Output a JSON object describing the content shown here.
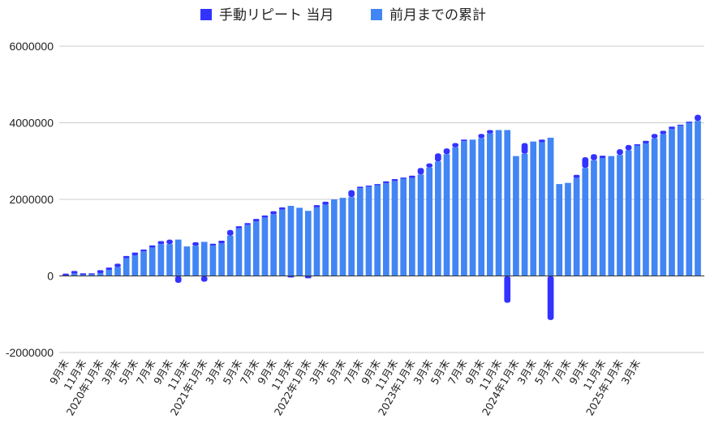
{
  "chart_data": {
    "type": "bar",
    "stacked": true,
    "legend_position": "top",
    "grid": true,
    "ylim": [
      -2000000,
      6000000
    ],
    "yticks": [
      -2000000,
      0,
      2000000,
      4000000,
      6000000
    ],
    "ytick_labels": [
      "-2000000",
      "0",
      "2000000",
      "4000000",
      "6000000"
    ],
    "series": [
      {
        "name": "手動リピート 当月",
        "color": "#3333ff",
        "values": [
          60000,
          70000,
          40000,
          30000,
          80000,
          60000,
          90000,
          60000,
          70000,
          50000,
          60000,
          80000,
          120000,
          -180000,
          0,
          90000,
          -150000,
          50000,
          70000,
          150000,
          60000,
          50000,
          70000,
          60000,
          80000,
          60000,
          -40000,
          0,
          -60000,
          60000,
          80000,
          0,
          0,
          180000,
          40000,
          30000,
          30000,
          50000,
          50000,
          30000,
          60000,
          170000,
          110000,
          210000,
          150000,
          110000,
          40000,
          0,
          110000,
          90000,
          0,
          -700000,
          0,
          280000,
          0,
          70000,
          -1150000,
          0,
          0,
          80000,
          280000,
          160000,
          60000,
          0,
          150000,
          140000,
          40000,
          70000,
          120000,
          90000,
          60000,
          30000,
          30000,
          160000
        ]
      },
      {
        "name": "前月までの累計",
        "color": "#4285f4",
        "values": [
          0,
          60000,
          30000,
          40000,
          70000,
          160000,
          230000,
          460000,
          540000,
          640000,
          740000,
          830000,
          830000,
          950000,
          770000,
          790000,
          890000,
          790000,
          850000,
          1050000,
          1240000,
          1330000,
          1420000,
          1520000,
          1610000,
          1730000,
          1830000,
          1780000,
          1700000,
          1790000,
          1860000,
          2000000,
          2040000,
          2060000,
          2290000,
          2330000,
          2370000,
          2420000,
          2480000,
          2540000,
          2560000,
          2650000,
          2830000,
          2990000,
          3180000,
          3360000,
          3520000,
          3560000,
          3600000,
          3720000,
          3810000,
          3810000,
          3130000,
          3190000,
          3510000,
          3490000,
          3610000,
          2400000,
          2430000,
          2560000,
          2820000,
          3020000,
          3080000,
          3130000,
          3160000,
          3280000,
          3400000,
          3460000,
          3590000,
          3700000,
          3840000,
          3920000,
          4000000,
          4050000
        ]
      }
    ],
    "x_tick_labels": [
      {
        "index": 0,
        "label": "9月末"
      },
      {
        "index": 2,
        "label": "11月末"
      },
      {
        "index": 4,
        "label": "2020年1月末"
      },
      {
        "index": 6,
        "label": "3月末"
      },
      {
        "index": 8,
        "label": "5月末"
      },
      {
        "index": 10,
        "label": "7月末"
      },
      {
        "index": 12,
        "label": "9月末"
      },
      {
        "index": 14,
        "label": "11月末"
      },
      {
        "index": 16,
        "label": "2021年1月末"
      },
      {
        "index": 18,
        "label": "3月末"
      },
      {
        "index": 20,
        "label": "5月末"
      },
      {
        "index": 22,
        "label": "7月末"
      },
      {
        "index": 24,
        "label": "9月末"
      },
      {
        "index": 26,
        "label": "11月末"
      },
      {
        "index": 28,
        "label": "2022年1月末"
      },
      {
        "index": 30,
        "label": "3月末"
      },
      {
        "index": 32,
        "label": "5月末"
      },
      {
        "index": 34,
        "label": "7月末"
      },
      {
        "index": 36,
        "label": "9月末"
      },
      {
        "index": 38,
        "label": "11月末"
      },
      {
        "index": 40,
        "label": "2023年1月末"
      },
      {
        "index": 42,
        "label": "3月末"
      },
      {
        "index": 44,
        "label": "5月末"
      },
      {
        "index": 46,
        "label": "7月末"
      },
      {
        "index": 48,
        "label": "9月末"
      },
      {
        "index": 50,
        "label": "11月末"
      },
      {
        "index": 52,
        "label": "2024年1月末"
      },
      {
        "index": 54,
        "label": "3月末"
      },
      {
        "index": 56,
        "label": "5月末"
      },
      {
        "index": 58,
        "label": "7月末"
      },
      {
        "index": 60,
        "label": "9月末"
      },
      {
        "index": 62,
        "label": "11月末"
      },
      {
        "index": 64,
        "label": "2025年1月末"
      },
      {
        "index": 66,
        "label": "3月末"
      }
    ]
  }
}
